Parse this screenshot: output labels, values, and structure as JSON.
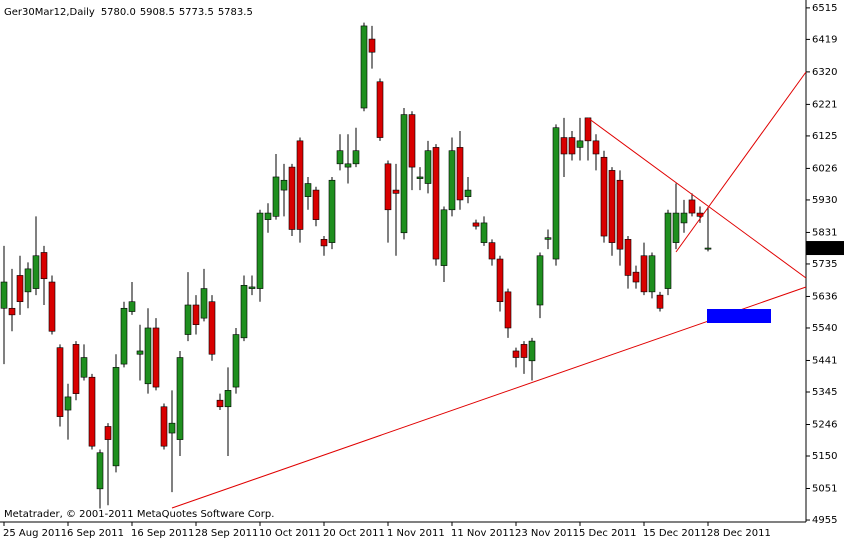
{
  "chart_data": {
    "type": "candlestick",
    "title": "Ger30Mar12,Daily",
    "header": {
      "open": "5780.0",
      "high": "5908.5",
      "low": "5773.5",
      "close": "5783.5"
    },
    "footer": "Metatrader, © 2001-2011 MetaQuotes Software Corp.",
    "categories": [
      "25 Aug 2011",
      null,
      null,
      null,
      null,
      null,
      null,
      null,
      "6 Sep 2011",
      null,
      null,
      null,
      null,
      null,
      null,
      null,
      "16 Sep 2011",
      null,
      null,
      null,
      null,
      null,
      null,
      null,
      "28 Sep 2011",
      null,
      null,
      null,
      null,
      null,
      null,
      null,
      "10 Oct 2011",
      null,
      null,
      null,
      null,
      null,
      null,
      null,
      "20 Oct 2011",
      null,
      null,
      null,
      null,
      null,
      null,
      null,
      "1 Nov 2011",
      null,
      null,
      null,
      null,
      null,
      null,
      null,
      "11 Nov 2011",
      null,
      null,
      null,
      null,
      null,
      null,
      null,
      "23 Nov 2011",
      null,
      null,
      null,
      null,
      null,
      null,
      null,
      "5 Dec 2011",
      null,
      null,
      null,
      null,
      null,
      null,
      null,
      "15 Dec 2011",
      null,
      null,
      null,
      null,
      null,
      null,
      null,
      "28 Dec 2011"
    ],
    "open": [
      5600,
      5600,
      5700,
      5650,
      5660,
      5770,
      5680,
      5480,
      5290,
      5490,
      5390,
      5390,
      5050,
      5240,
      5120,
      5430,
      5590,
      5460,
      5370,
      5540,
      5300,
      5220,
      5200,
      5520,
      5610,
      5570,
      5620,
      5320,
      5300,
      5360,
      5510,
      5660,
      5660,
      5870,
      5880,
      5960,
      6030,
      6110,
      5940,
      5960,
      5810,
      5800,
      6040,
      6030,
      6040,
      6210,
      6420,
      6290,
      6040,
      5960,
      5830,
      6190,
      5995,
      5980,
      6090,
      5730,
      5900,
      6090,
      5940,
      5860,
      5800,
      5800,
      5750,
      5650,
      5470,
      5490,
      5440,
      5610,
      5810,
      5750,
      6120,
      6120,
      6090,
      6180,
      6110,
      6060,
      6020,
      5990,
      5810,
      5710,
      5760,
      5650,
      5640,
      5660,
      5800,
      5860,
      5930,
      5890,
      5780
    ],
    "high": [
      5790,
      5720,
      5760,
      5740,
      5880,
      5790,
      5700,
      5490,
      5370,
      5500,
      5490,
      5400,
      5170,
      5250,
      5460,
      5620,
      5680,
      5550,
      5600,
      5570,
      5310,
      5350,
      5470,
      5710,
      5640,
      5720,
      5640,
      5340,
      5420,
      5540,
      5700,
      5700,
      5900,
      5920,
      6070,
      6040,
      6040,
      6120,
      6000,
      5970,
      5820,
      6000,
      6130,
      6130,
      6150,
      6470,
      6460,
      6300,
      6050,
      6040,
      6210,
      6200,
      6030,
      6110,
      6100,
      5910,
      6120,
      6140,
      6000,
      5870,
      5880,
      5810,
      5760,
      5660,
      5480,
      5500,
      5510,
      5770,
      5840,
      6160,
      6180,
      6140,
      6180,
      6180,
      6130,
      6080,
      6030,
      6020,
      5820,
      5730,
      5800,
      5770,
      5650,
      5900,
      5980,
      5930,
      5950,
      5910,
      5908.5
    ],
    "low": [
      5430,
      5530,
      5580,
      5600,
      5640,
      5610,
      5520,
      5240,
      5200,
      5320,
      5380,
      5170,
      4990,
      5000,
      5100,
      5420,
      5580,
      5380,
      5340,
      5350,
      5170,
      5040,
      5150,
      5500,
      5520,
      5560,
      5440,
      5290,
      5150,
      5340,
      5500,
      5640,
      5620,
      5830,
      5870,
      5880,
      5820,
      5800,
      5900,
      5850,
      5760,
      5780,
      6020,
      5980,
      6030,
      6200,
      6330,
      6110,
      5800,
      5760,
      5810,
      5960,
      5960,
      5950,
      5730,
      5680,
      5880,
      5900,
      5920,
      5840,
      5790,
      5730,
      5590,
      5510,
      5420,
      5400,
      5380,
      5570,
      5780,
      5730,
      6000,
      6050,
      6050,
      6050,
      6020,
      5800,
      5760,
      5730,
      5660,
      5660,
      5640,
      5630,
      5590,
      5640,
      5780,
      5830,
      5880,
      5860,
      5773.5
    ],
    "close": [
      5680,
      5580,
      5620,
      5720,
      5760,
      5690,
      5530,
      5270,
      5330,
      5340,
      5450,
      5180,
      5160,
      5200,
      5420,
      5600,
      5620,
      5470,
      5540,
      5360,
      5180,
      5250,
      5450,
      5610,
      5550,
      5660,
      5460,
      5300,
      5350,
      5520,
      5670,
      5665,
      5890,
      5890,
      6000,
      5990,
      5840,
      5840,
      5980,
      5870,
      5790,
      5990,
      6080,
      6040,
      6080,
      6460,
      6380,
      6120,
      5900,
      5950,
      6190,
      6030,
      6000,
      6080,
      5750,
      5900,
      6080,
      5930,
      5960,
      5850,
      5860,
      5750,
      5620,
      5540,
      5450,
      5450,
      5500,
      5760,
      5815,
      6150,
      6070,
      6070,
      6110,
      6110,
      6070,
      5820,
      5800,
      5780,
      5700,
      5680,
      5650,
      5760,
      5600,
      5890,
      5890,
      5890,
      5890,
      5880,
      5783.5
    ],
    "up_color": "#1f8f1f",
    "down_color": "#d80000",
    "ylim": [
      4949,
      6539
    ],
    "yticks": [
      4955,
      5051,
      5150,
      5246,
      5345,
      5441,
      5540,
      5636,
      5735,
      5831,
      5930,
      6026,
      6125,
      6221,
      6320,
      6419,
      6515
    ]
  }
}
